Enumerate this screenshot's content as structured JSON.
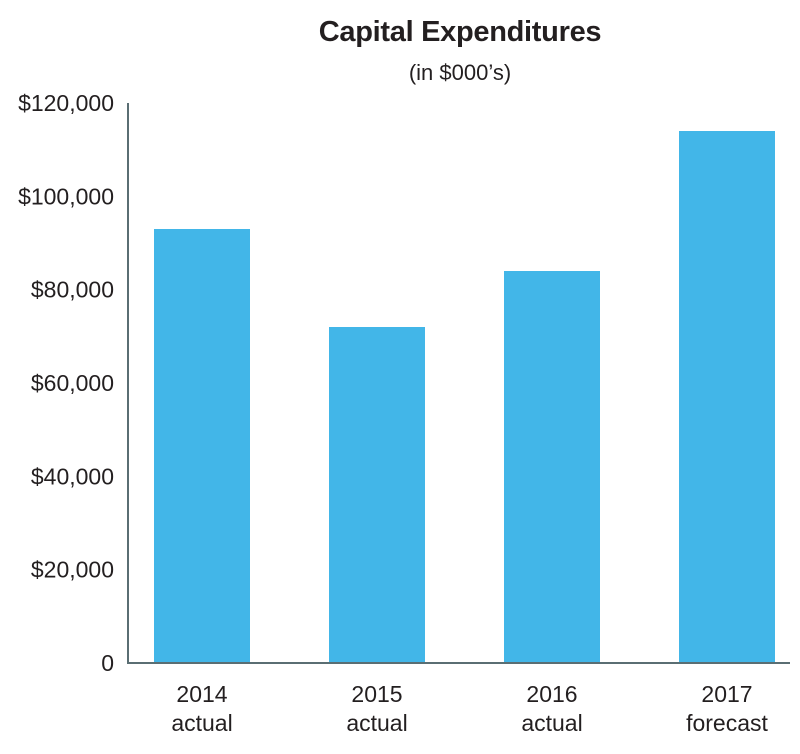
{
  "chart_data": {
    "type": "bar",
    "title": "Capital Expenditures",
    "subtitle": "(in $000’s)",
    "categories": [
      {
        "year": "2014",
        "note": "actual"
      },
      {
        "year": "2015",
        "note": "actual"
      },
      {
        "year": "2016",
        "note": "actual"
      },
      {
        "year": "2017",
        "note": "forecast"
      }
    ],
    "values": [
      93000,
      72000,
      84000,
      114000
    ],
    "ylim": [
      0,
      120000
    ],
    "yticks": [
      0,
      20000,
      40000,
      60000,
      80000,
      100000,
      120000
    ],
    "ytick_labels": [
      "0",
      "$20,000",
      "$40,000",
      "$60,000",
      "$80,000",
      "$100,000",
      "$120,000"
    ],
    "bar_color": "#42b6e8",
    "axis_color": "#5a6e73",
    "grid": false,
    "legend": "none"
  }
}
